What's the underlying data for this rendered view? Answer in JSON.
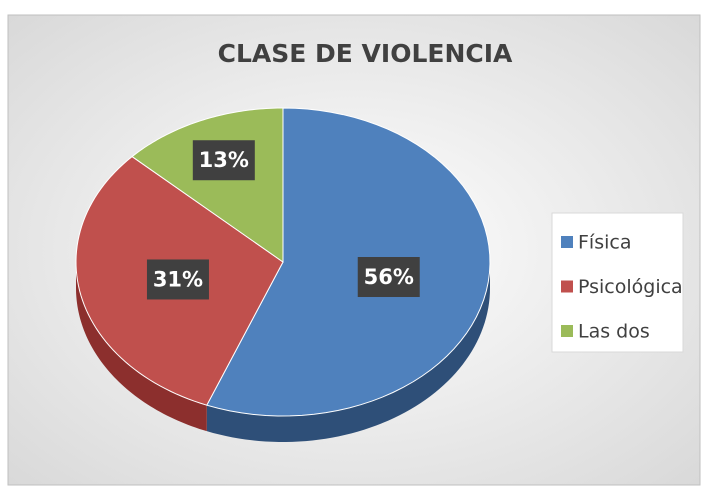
{
  "chart_data": {
    "type": "pie",
    "title": "CLASE DE VIOLENCIA",
    "categories": [
      "Física",
      "Psicológica",
      "Las dos"
    ],
    "values": [
      56,
      31,
      13
    ],
    "value_labels": [
      "56%",
      "31%",
      "13%"
    ],
    "colors": [
      "#4f81bd",
      "#c0504d",
      "#9bbb59"
    ],
    "side_colors": [
      "#2e4f78",
      "#8c2f2d",
      "#6b8a3a"
    ],
    "legend": "right"
  }
}
